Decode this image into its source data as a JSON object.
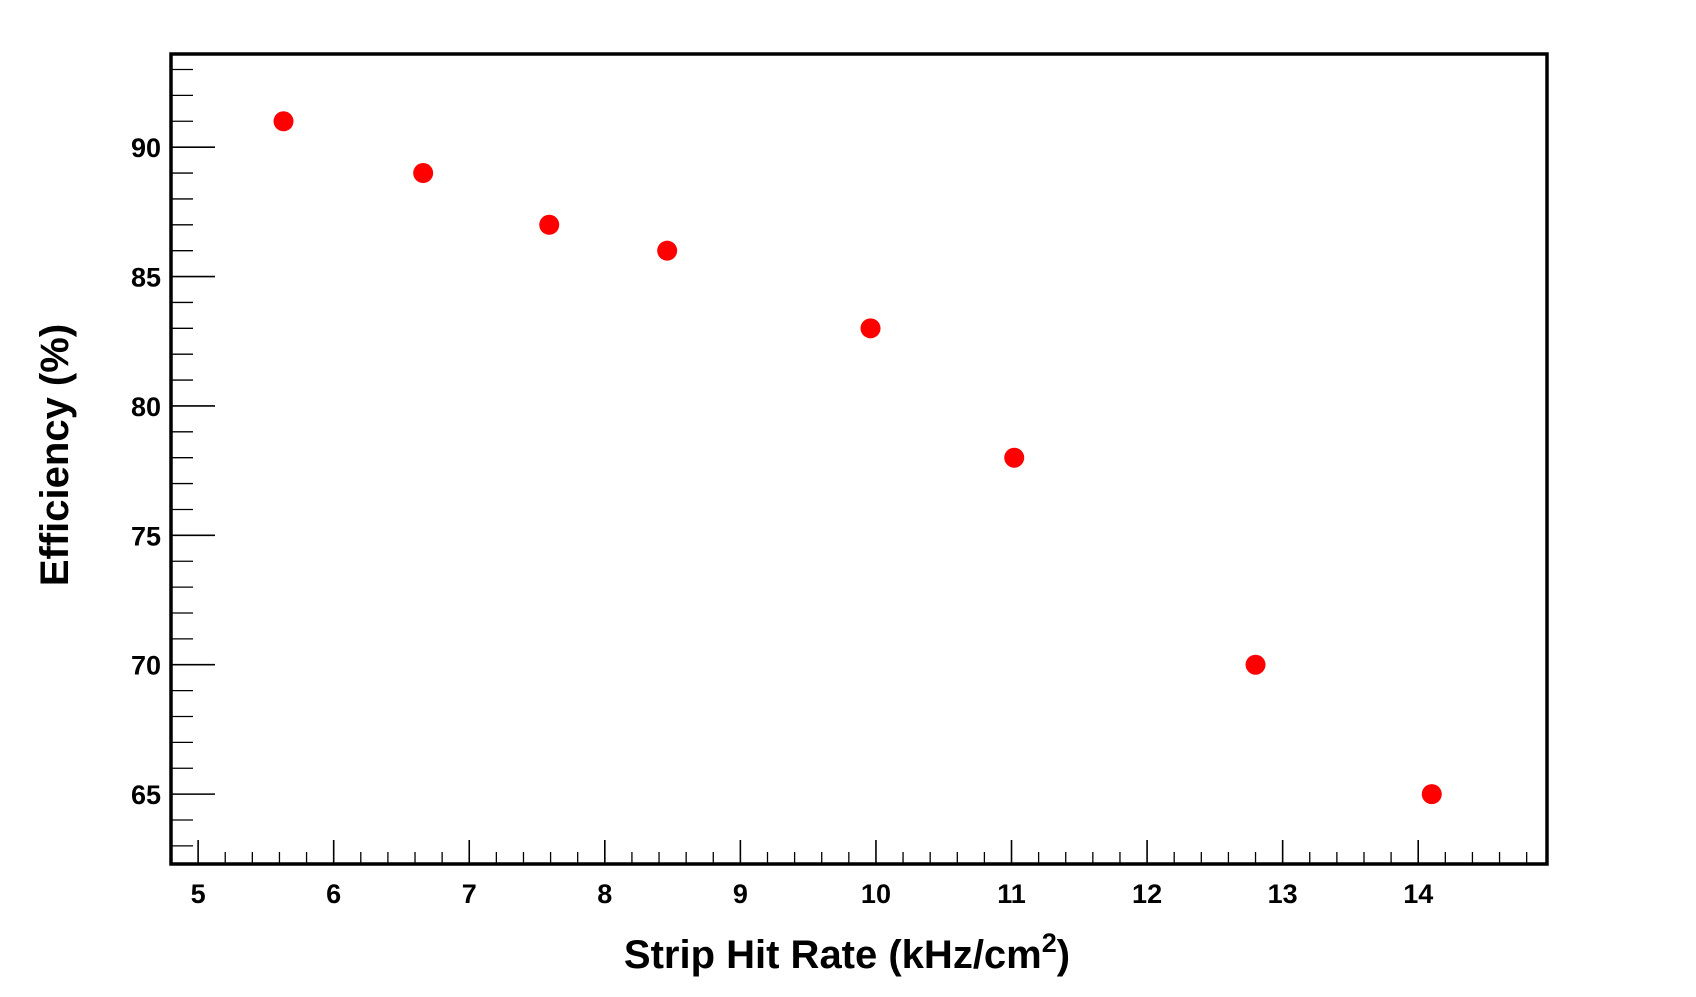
{
  "chart_data": {
    "type": "scatter",
    "title": "",
    "xlabel": "Strip Hit Rate (kHz/cm",
    "xlabel_superscript": "2",
    "xlabel_suffix": ")",
    "ylabel": "Efficiency (%)",
    "xlim": [
      4.8,
      14.95
    ],
    "ylim": [
      62.3,
      93.6
    ],
    "x_ticks": [
      5,
      6,
      7,
      8,
      9,
      10,
      11,
      12,
      13,
      14
    ],
    "y_ticks": [
      65,
      70,
      75,
      80,
      85,
      90
    ],
    "x_minor_step": 0.2,
    "y_minor_step": 1,
    "grid": false,
    "legend": "none",
    "marker_color": "#ff0000",
    "points": [
      {
        "x": 5.63,
        "y": 91
      },
      {
        "x": 6.66,
        "y": 89
      },
      {
        "x": 7.59,
        "y": 87
      },
      {
        "x": 8.46,
        "y": 86
      },
      {
        "x": 9.96,
        "y": 83
      },
      {
        "x": 11.02,
        "y": 78
      },
      {
        "x": 12.8,
        "y": 70
      },
      {
        "x": 14.1,
        "y": 65
      }
    ]
  }
}
